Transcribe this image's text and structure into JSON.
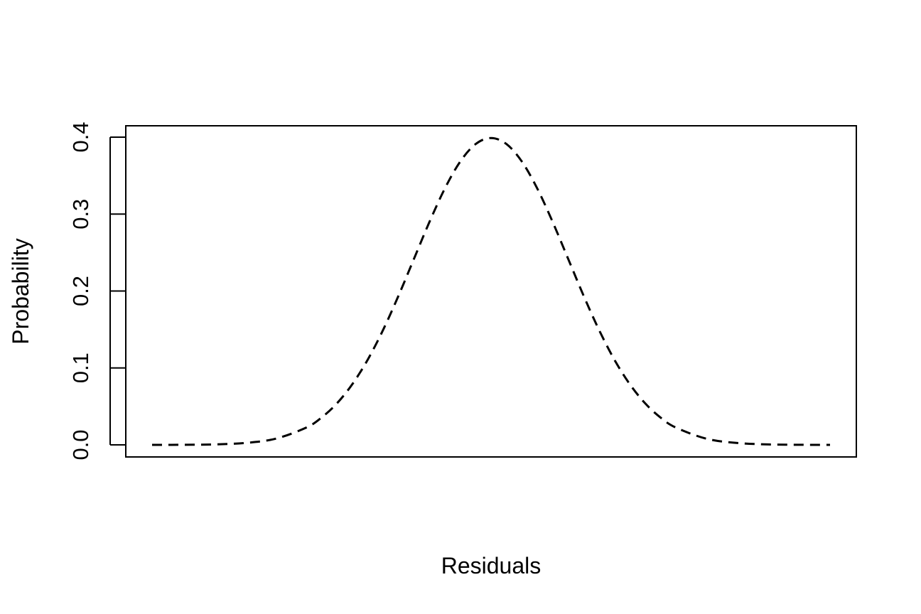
{
  "chart_data": {
    "type": "line",
    "title": "",
    "xlabel": "Residuals",
    "ylabel": "Probability",
    "ylim": [
      0,
      0.4
    ],
    "yticks": [
      0.0,
      0.1,
      0.2,
      0.3,
      0.4
    ],
    "ytick_labels": [
      "0.0",
      "0.1",
      "0.2",
      "0.3",
      "0.4"
    ],
    "xticks_shown": false,
    "grid": false,
    "line_style": "dashed",
    "line_color": "#000000",
    "series": [
      {
        "x": [
          -4.4,
          -4.0,
          -3.6,
          -3.2,
          -2.8,
          -2.4,
          -2.2,
          -2.0,
          -1.8,
          -1.6,
          -1.4,
          -1.2,
          -1.0,
          -0.8,
          -0.6,
          -0.4,
          -0.2,
          0.0,
          0.2,
          0.4,
          0.6,
          0.8,
          1.0,
          1.2,
          1.4,
          1.6,
          1.8,
          2.0,
          2.2,
          2.4,
          2.8,
          3.2,
          3.6,
          4.0,
          4.4
        ],
        "y": [
          0.0,
          0.0001,
          0.0006,
          0.0024,
          0.0079,
          0.0224,
          0.0355,
          0.054,
          0.079,
          0.1109,
          0.1497,
          0.1942,
          0.242,
          0.2897,
          0.3332,
          0.3683,
          0.391,
          0.3989,
          0.391,
          0.3683,
          0.3332,
          0.2897,
          0.242,
          0.1942,
          0.1497,
          0.1109,
          0.079,
          0.054,
          0.0355,
          0.0224,
          0.0079,
          0.0024,
          0.0006,
          0.0001,
          0.0
        ]
      }
    ]
  }
}
